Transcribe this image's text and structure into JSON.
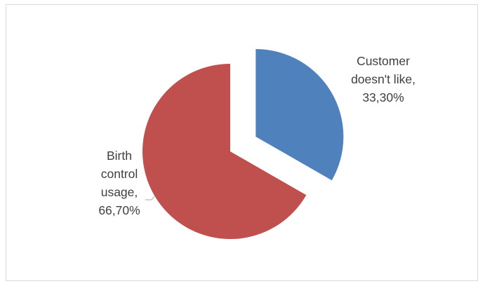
{
  "chart_data": {
    "type": "pie",
    "title": "",
    "slices": [
      {
        "name": "Customer doesn't like",
        "value": 33.3,
        "percent_label": "33,30%",
        "color": "#4f81bd",
        "exploded": true,
        "label_lines": [
          "Customer",
          "doesn't like,",
          "33,30%"
        ]
      },
      {
        "name": "Birth control usage",
        "value": 66.7,
        "percent_label": "66,70%",
        "color": "#c0504d",
        "exploded": false,
        "label_lines": [
          "Birth",
          "control",
          "usage,",
          "66,70%"
        ]
      }
    ],
    "legend": "none"
  }
}
